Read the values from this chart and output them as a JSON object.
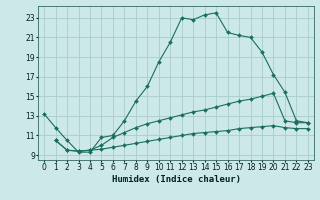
{
  "xlabel": "Humidex (Indice chaleur)",
  "bg_color": "#cde8e8",
  "grid_color": "#a8cccc",
  "line_color": "#1a6e5e",
  "xlim": [
    -0.5,
    23.5
  ],
  "ylim": [
    8.5,
    24.2
  ],
  "xticks": [
    0,
    1,
    2,
    3,
    4,
    5,
    6,
    7,
    8,
    9,
    10,
    11,
    12,
    13,
    14,
    15,
    16,
    17,
    18,
    19,
    20,
    21,
    22,
    23
  ],
  "yticks": [
    9,
    11,
    13,
    15,
    17,
    19,
    21,
    23
  ],
  "line1_x": [
    0,
    1,
    2,
    3,
    4,
    5,
    6,
    7,
    8,
    9,
    10,
    11,
    12,
    13,
    14,
    15,
    16,
    17,
    18,
    19,
    20,
    21,
    22,
    23
  ],
  "line1_y": [
    13.2,
    11.8,
    10.5,
    9.3,
    9.3,
    10.8,
    11.0,
    12.5,
    14.5,
    16.0,
    18.5,
    20.5,
    23.0,
    22.8,
    23.3,
    23.5,
    21.5,
    21.2,
    21.0,
    19.5,
    17.2,
    15.4,
    12.5,
    12.3
  ],
  "line2_x": [
    1,
    2,
    3,
    4,
    5,
    6,
    7,
    8,
    9,
    10,
    11,
    12,
    13,
    14,
    15,
    16,
    17,
    18,
    19,
    20,
    21,
    22,
    23
  ],
  "line2_y": [
    10.5,
    9.5,
    9.4,
    9.5,
    10.0,
    10.8,
    11.3,
    11.8,
    12.2,
    12.5,
    12.8,
    13.1,
    13.4,
    13.6,
    13.9,
    14.2,
    14.5,
    14.7,
    15.0,
    15.3,
    12.5,
    12.3,
    12.3
  ],
  "line3_x": [
    1,
    2,
    3,
    4,
    5,
    6,
    7,
    8,
    9,
    10,
    11,
    12,
    13,
    14,
    15,
    16,
    17,
    18,
    19,
    20,
    21,
    22,
    23
  ],
  "line3_y": [
    10.5,
    9.5,
    9.4,
    9.5,
    9.6,
    9.8,
    10.0,
    10.2,
    10.4,
    10.6,
    10.8,
    11.0,
    11.2,
    11.3,
    11.4,
    11.5,
    11.7,
    11.8,
    11.9,
    12.0,
    11.8,
    11.7,
    11.7
  ]
}
